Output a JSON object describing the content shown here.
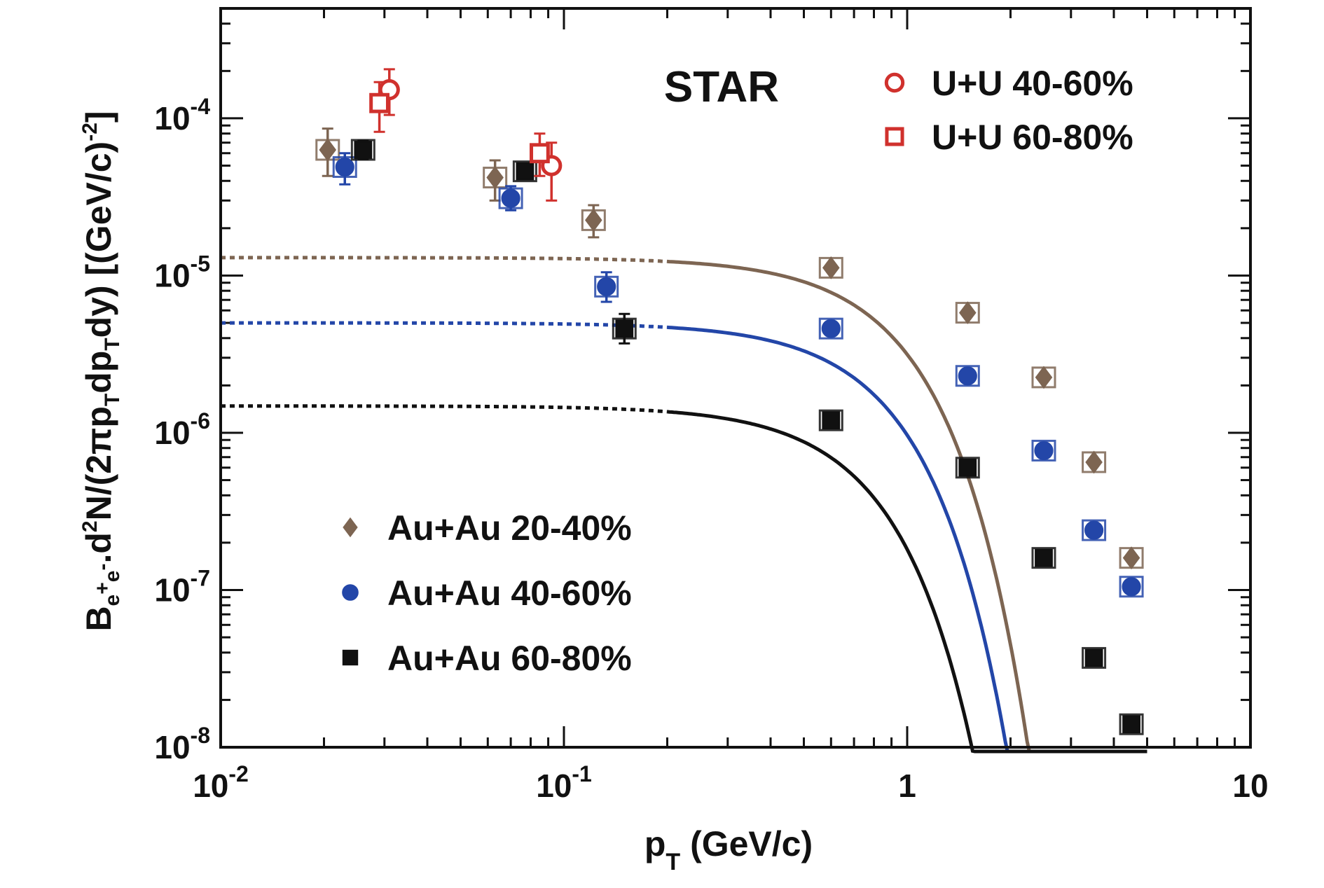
{
  "chart_data": {
    "type": "scatter",
    "title": "STAR",
    "xlabel": {
      "main": "p",
      "sub": "T",
      "rest": " (GeV/c)"
    },
    "ylabel": {
      "segments": [
        {
          "t": "B",
          "s": "n"
        },
        {
          "t": "e",
          "s": "sub"
        },
        {
          "t": "+",
          "s": "subsup"
        },
        {
          "t": "e",
          "s": "sub"
        },
        {
          "t": "-",
          "s": "subsup"
        },
        {
          "t": ".d",
          "s": "n"
        },
        {
          "t": "2",
          "s": "sup"
        },
        {
          "t": "N/(2πp",
          "s": "n"
        },
        {
          "t": "T",
          "s": "sub"
        },
        {
          "t": "dp",
          "s": "n"
        },
        {
          "t": "T",
          "s": "sub"
        },
        {
          "t": "dy) [(GeV/c)",
          "s": "n"
        },
        {
          "t": "-2",
          "s": "sup"
        },
        {
          "t": "]",
          "s": "n"
        }
      ]
    },
    "x_scale": "log",
    "y_scale": "log",
    "xlim": [
      0.01,
      10
    ],
    "ylim": [
      1e-08,
      0.0005
    ],
    "x_ticks": [
      {
        "value": 0.01,
        "base": "10",
        "exp": "-2"
      },
      {
        "value": 0.1,
        "base": "10",
        "exp": "-1"
      },
      {
        "value": 1,
        "base": "1",
        "exp": ""
      },
      {
        "value": 10,
        "base": "10",
        "exp": ""
      }
    ],
    "y_ticks": [
      {
        "value": 1e-08,
        "base": "10",
        "exp": "-8"
      },
      {
        "value": 1e-07,
        "base": "10",
        "exp": "-7"
      },
      {
        "value": 1e-06,
        "base": "10",
        "exp": "-6"
      },
      {
        "value": 1e-05,
        "base": "10",
        "exp": "-5"
      },
      {
        "value": 0.0001,
        "base": "10",
        "exp": "-4"
      }
    ],
    "grid": false,
    "series": [
      {
        "name": "Au+Au 20-40%",
        "marker": "diamond",
        "color": "#7d6552",
        "filled": true,
        "points": [
          {
            "x": 0.0205,
            "y": 6.3e-05,
            "ylo": 4.3e-05,
            "yhi": 8.6e-05
          },
          {
            "x": 0.063,
            "y": 4.2e-05,
            "ylo": 3e-05,
            "yhi": 5.4e-05
          },
          {
            "x": 0.122,
            "y": 2.25e-05,
            "ylo": 1.75e-05,
            "yhi": 2.8e-05
          },
          {
            "x": 0.6,
            "y": 1.12e-05
          },
          {
            "x": 1.5,
            "y": 5.8e-06
          },
          {
            "x": 2.5,
            "y": 2.25e-06
          },
          {
            "x": 3.5,
            "y": 6.5e-07
          },
          {
            "x": 4.5,
            "y": 1.6e-07
          }
        ]
      },
      {
        "name": "Au+Au 40-60%",
        "marker": "circle",
        "color": "#2346a8",
        "filled": true,
        "points": [
          {
            "x": 0.023,
            "y": 4.9e-05,
            "ylo": 3.8e-05,
            "yhi": 6e-05
          },
          {
            "x": 0.07,
            "y": 3.1e-05,
            "ylo": 2.6e-05,
            "yhi": 3.7e-05
          },
          {
            "x": 0.133,
            "y": 8.5e-06,
            "ylo": 6.8e-06,
            "yhi": 1.05e-05
          },
          {
            "x": 0.6,
            "y": 4.6e-06
          },
          {
            "x": 1.5,
            "y": 2.3e-06
          },
          {
            "x": 2.5,
            "y": 7.7e-07
          },
          {
            "x": 3.5,
            "y": 2.4e-07
          },
          {
            "x": 4.5,
            "y": 1.05e-07
          }
        ]
      },
      {
        "name": "Au+Au 60-80%",
        "marker": "square",
        "color": "#111111",
        "filled": true,
        "points": [
          {
            "x": 0.026,
            "y": 6.3e-05,
            "ylo": 5.5e-05,
            "yhi": 7.2e-05
          },
          {
            "x": 0.077,
            "y": 4.6e-05,
            "ylo": 4.2e-05,
            "yhi": 5e-05
          },
          {
            "x": 0.15,
            "y": 4.6e-06,
            "ylo": 3.7e-06,
            "yhi": 5.7e-06
          },
          {
            "x": 0.6,
            "y": 1.2e-06
          },
          {
            "x": 1.5,
            "y": 6e-07
          },
          {
            "x": 2.5,
            "y": 1.6e-07
          },
          {
            "x": 3.5,
            "y": 3.7e-08
          },
          {
            "x": 4.5,
            "y": 1.4e-08
          }
        ]
      },
      {
        "name": "U+U 40-60%",
        "marker": "circle",
        "color": "#d0312d",
        "filled": false,
        "points": [
          {
            "x": 0.031,
            "y": 0.000152,
            "ylo": 0.000105,
            "yhi": 0.000205
          },
          {
            "x": 0.092,
            "y": 5e-05,
            "ylo": 3e-05,
            "yhi": 7e-05
          }
        ]
      },
      {
        "name": "U+U 60-80%",
        "marker": "square",
        "color": "#d0312d",
        "filled": false,
        "points": [
          {
            "x": 0.029,
            "y": 0.000125,
            "ylo": 8.2e-05,
            "yhi": 0.00017
          },
          {
            "x": 0.085,
            "y": 6e-05,
            "ylo": 4.3e-05,
            "yhi": 8e-05
          }
        ]
      }
    ],
    "fits": [
      {
        "series": "Au+Au 20-40%",
        "color": "#7d6552",
        "A": 1.3e-05,
        "T": 0.84,
        "dashed_x_max": 0.2,
        "x_max": 5.0
      },
      {
        "series": "Au+Au 40-60%",
        "color": "#2346a8",
        "A": 5e-06,
        "T": 0.78,
        "dashed_x_max": 0.2,
        "x_max": 5.0
      },
      {
        "series": "Au+Au 60-80%",
        "color": "#111111",
        "A": 1.48e-06,
        "T": 0.69,
        "dashed_x_max": 0.2,
        "x_max": 5.0
      }
    ],
    "legends": [
      {
        "group": "uu",
        "items": [
          {
            "label": "U+U 40-60%",
            "marker": "circle",
            "color": "#d0312d",
            "filled": false
          },
          {
            "label": "U+U 60-80%",
            "marker": "square",
            "color": "#d0312d",
            "filled": false
          }
        ]
      },
      {
        "group": "auau",
        "items": [
          {
            "label": "Au+Au 20-40%",
            "marker": "diamond",
            "color": "#7d6552",
            "filled": true
          },
          {
            "label": "Au+Au 40-60%",
            "marker": "circle",
            "color": "#2346a8",
            "filled": true
          },
          {
            "label": "Au+Au 60-80%",
            "marker": "square",
            "color": "#111111",
            "filled": true
          }
        ]
      }
    ]
  }
}
